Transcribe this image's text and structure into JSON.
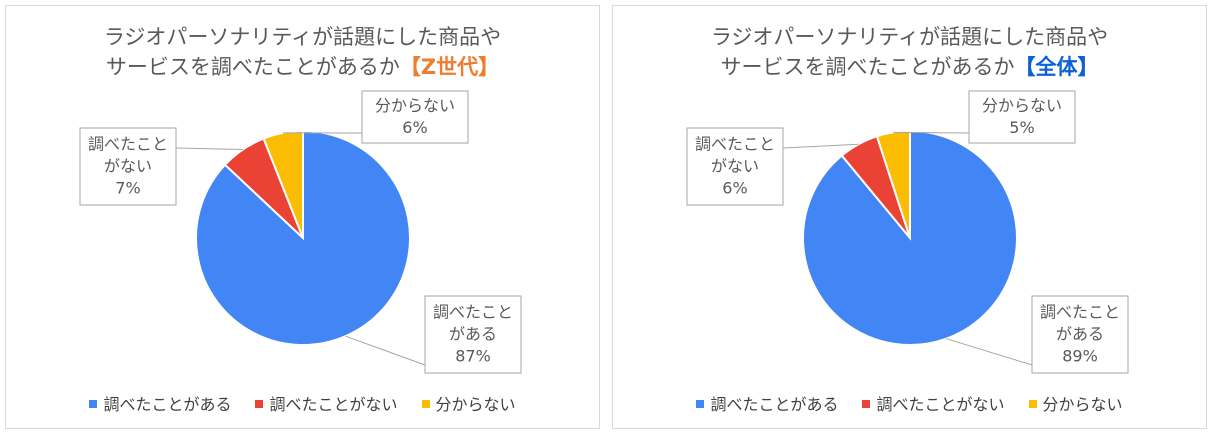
{
  "chart_data": [
    {
      "type": "pie",
      "title": "ラジオパーソナリティが話題にした商品やサービスを調べたことがあるか【Z世代】",
      "title_line1": "ラジオパーソナリティが話題にした商品や",
      "title_line2": "サービスを調べたことがあるか",
      "title_accent": "【Z世代】",
      "accent_color": "#ed7d31",
      "categories": [
        "調べたことがある",
        "調べたことがない",
        "分からない"
      ],
      "values": [
        87,
        7,
        6
      ],
      "data_labels": [
        [
          "調べたこと",
          "がある",
          "87%"
        ],
        [
          "調べたこと",
          "がない",
          "7%"
        ],
        [
          "分からない",
          "6%"
        ]
      ],
      "legend": "bottom"
    },
    {
      "type": "pie",
      "title": "ラジオパーソナリティが話題にした商品やサービスを調べたことがあるか【全体】",
      "title_line1": "ラジオパーソナリティが話題にした商品や",
      "title_line2": "サービスを調べたことがあるか",
      "title_accent": "【全体】",
      "accent_color": "#0b62d6",
      "categories": [
        "調べたことがある",
        "調べたことがない",
        "分からない"
      ],
      "values": [
        89,
        6,
        5
      ],
      "data_labels": [
        [
          "調べたこと",
          "がある",
          "89%"
        ],
        [
          "調べたこと",
          "がない",
          "6%"
        ],
        [
          "分からない",
          "5%"
        ]
      ],
      "legend": "bottom"
    }
  ],
  "colors": [
    "#4285f4",
    "#ea4335",
    "#fbbc04"
  ]
}
